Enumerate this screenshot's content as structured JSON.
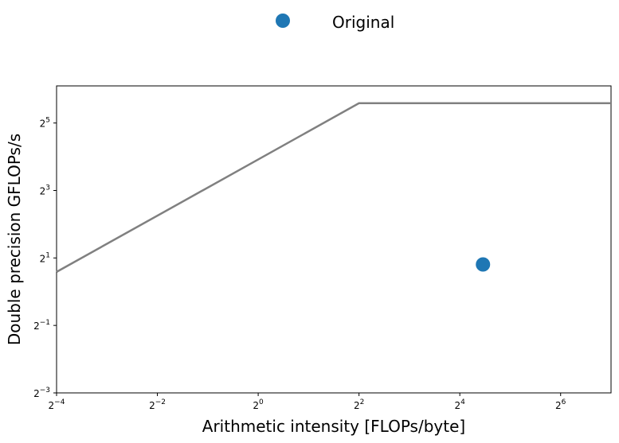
{
  "chart_data": {
    "type": "scatter",
    "xlabel": "Arithmetic intensity [FLOPs/byte]",
    "ylabel": "Double precision GFLOPs/s",
    "xscale": "log2",
    "yscale": "log2",
    "xlim_exp": [
      -4,
      7
    ],
    "ylim_exp": [
      -3,
      6.1
    ],
    "xticks": [
      {
        "base": "2",
        "exp": "−4",
        "value_exp": -4
      },
      {
        "base": "2",
        "exp": "−2",
        "value_exp": -2
      },
      {
        "base": "2",
        "exp": "0",
        "value_exp": 0
      },
      {
        "base": "2",
        "exp": "2",
        "value_exp": 2
      },
      {
        "base": "2",
        "exp": "4",
        "value_exp": 4
      },
      {
        "base": "2",
        "exp": "6",
        "value_exp": 6
      }
    ],
    "yticks": [
      {
        "base": "2",
        "exp": "−3",
        "value_exp": -3
      },
      {
        "base": "2",
        "exp": "−1",
        "value_exp": -1
      },
      {
        "base": "2",
        "exp": "1",
        "value_exp": 1
      },
      {
        "base": "2",
        "exp": "3",
        "value_exp": 3
      },
      {
        "base": "2",
        "exp": "5",
        "value_exp": 5
      }
    ],
    "roofline": {
      "color": "#808080",
      "points": [
        {
          "x": 0.0625,
          "y": 1.5
        },
        {
          "x": 4,
          "y": 48
        },
        {
          "x": 128,
          "y": 48
        }
      ]
    },
    "series": [
      {
        "name": "Original",
        "color": "#1f77b4",
        "points": [
          {
            "x": 22,
            "y": 1.75
          }
        ]
      }
    ],
    "legend": {
      "placement": "top-center"
    },
    "grid": false
  }
}
